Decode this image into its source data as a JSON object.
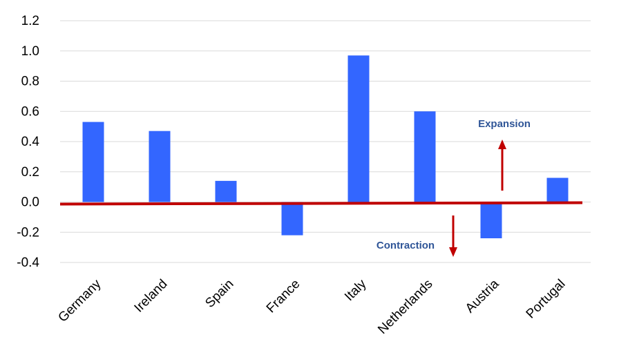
{
  "chart_data": {
    "type": "bar",
    "categories": [
      "Germany",
      "Ireland",
      "Spain",
      "France",
      "Italy",
      "Netherlands",
      "Austria",
      "Portugal"
    ],
    "values": [
      0.53,
      0.47,
      0.14,
      -0.22,
      0.97,
      0.6,
      -0.24,
      0.16
    ],
    "ylim": [
      -0.4,
      1.2
    ],
    "yticks": [
      "1.2",
      "1.0",
      "0.8",
      "0.6",
      "0.4",
      "0.2",
      "0.0",
      "-0.2",
      "-0.4"
    ],
    "title": "",
    "xlabel": "",
    "ylabel": "",
    "grid": true,
    "bar_color": "#3366ff",
    "annotations": {
      "expansion": "Expansion",
      "contraction": "Contraction"
    },
    "annotation_color": "#2f5597",
    "arrow_color": "#c00000",
    "zero_line_color": "#c00000"
  }
}
